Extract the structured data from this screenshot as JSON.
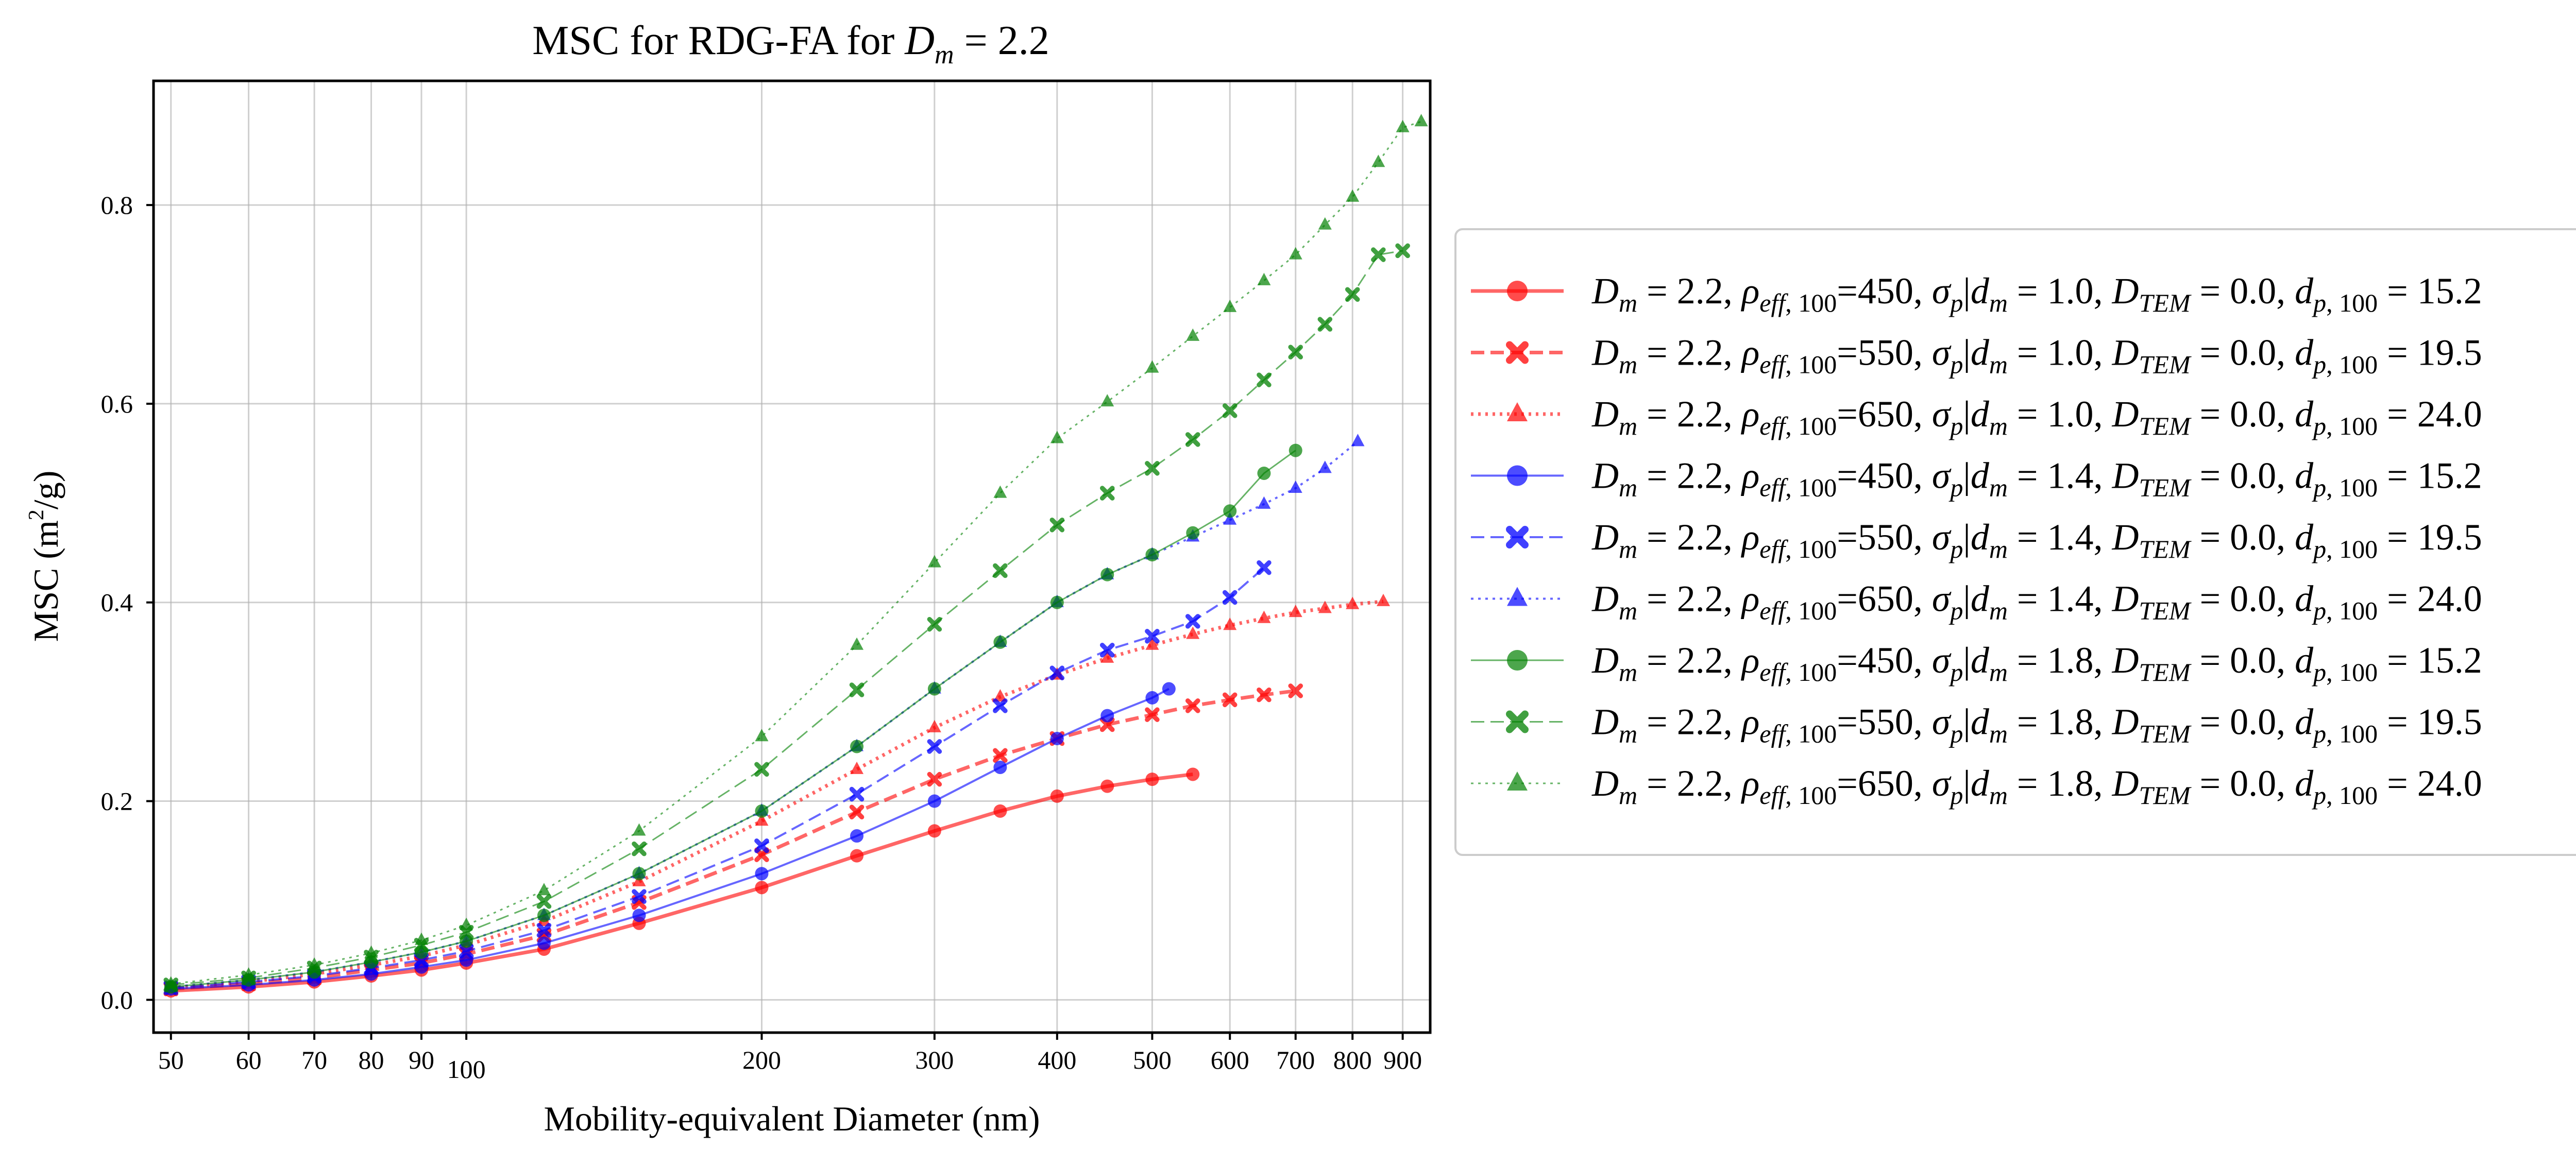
{
  "chart_data": {
    "type": "line",
    "title": "MSC for RDG-FA for D_m = 2.2",
    "title_parts": {
      "lead": "MSC for RDG-FA for ",
      "var": "D",
      "sub": "m",
      "tail": " = 2.2"
    },
    "xlabel": "Mobility-equivalent Diameter (nm)",
    "ylabel": "MSC (m²/g)",
    "ylabel_parts": {
      "lead": "MSC (m",
      "sup": "2",
      "tail": "/g)"
    },
    "x_scale": "log",
    "xlim": [
      48,
      960
    ],
    "ylim": [
      -0.033,
      0.925
    ],
    "grid": true,
    "legend_position": "outside-right",
    "x_ticks": [
      50,
      60,
      70,
      80,
      90,
      100,
      200,
      300,
      400,
      500,
      600,
      700,
      800,
      900
    ],
    "x_tick_labels": [
      "50",
      "60",
      "70",
      "80",
      "90",
      "100",
      "200",
      "300",
      "400",
      "500",
      "600",
      "700",
      "800",
      "900"
    ],
    "y_ticks": [
      0.0,
      0.2,
      0.4,
      0.6,
      0.8
    ],
    "y_tick_labels": [
      "0.0",
      "0.2",
      "0.4",
      "0.6",
      "0.8"
    ],
    "series": [
      {
        "name": "D_m = 2.2, ρ_eff,100=450, σ_p|d_m = 1.0, D_TEM = 0.0, d_p,100 = 15.2",
        "label": {
          "rho": "450",
          "sigma": "1.0",
          "dp": "15.2"
        },
        "color": "#ff0000",
        "marker": "circle",
        "linestyle": "solid",
        "linewidth": 7,
        "x": [
          50,
          60,
          70,
          80,
          90,
          100,
          120,
          150,
          200,
          250,
          300,
          350,
          400,
          450,
          500,
          550
        ],
        "y": [
          0.009,
          0.013,
          0.018,
          0.024,
          0.03,
          0.037,
          0.051,
          0.077,
          0.113,
          0.145,
          0.17,
          0.19,
          0.205,
          0.215,
          0.222,
          0.227
        ]
      },
      {
        "name": "D_m = 2.2, ρ_eff,100=550, σ_p|d_m = 1.0, D_TEM = 0.0, d_p,100 = 19.5",
        "label": {
          "rho": "550",
          "sigma": "1.0",
          "dp": "19.5"
        },
        "color": "#ff0000",
        "marker": "x",
        "linestyle": "dashed",
        "linewidth": 7,
        "x": [
          50,
          60,
          70,
          80,
          90,
          100,
          120,
          150,
          200,
          250,
          300,
          350,
          400,
          450,
          500,
          550,
          600,
          650,
          700
        ],
        "y": [
          0.011,
          0.016,
          0.022,
          0.03,
          0.037,
          0.046,
          0.065,
          0.098,
          0.146,
          0.189,
          0.222,
          0.246,
          0.263,
          0.277,
          0.287,
          0.296,
          0.302,
          0.307,
          0.311
        ]
      },
      {
        "name": "D_m = 2.2, ρ_eff,100=650, σ_p|d_m = 1.0, D_TEM = 0.0, d_p,100 = 24.0",
        "label": {
          "rho": "650",
          "sigma": "1.0",
          "dp": "24.0"
        },
        "color": "#ff0000",
        "marker": "triangle",
        "linestyle": "dotted",
        "linewidth": 7,
        "x": [
          50,
          60,
          70,
          80,
          90,
          100,
          120,
          150,
          200,
          250,
          300,
          350,
          400,
          450,
          500,
          550,
          600,
          650,
          700,
          750,
          800,
          860
        ],
        "y": [
          0.012,
          0.018,
          0.026,
          0.035,
          0.044,
          0.055,
          0.079,
          0.119,
          0.18,
          0.232,
          0.274,
          0.305,
          0.327,
          0.344,
          0.357,
          0.368,
          0.377,
          0.384,
          0.39,
          0.394,
          0.398,
          0.401
        ]
      },
      {
        "name": "D_m = 2.2, ρ_eff,100=450, σ_p|d_m = 1.4, D_TEM = 0.0, d_p,100 = 15.2",
        "label": {
          "rho": "450",
          "sigma": "1.4",
          "dp": "15.2"
        },
        "color": "#0000ff",
        "marker": "circle",
        "linestyle": "solid",
        "linewidth": 4,
        "x": [
          50,
          60,
          70,
          80,
          90,
          100,
          120,
          150,
          200,
          250,
          300,
          350,
          400,
          450,
          500,
          520
        ],
        "y": [
          0.011,
          0.015,
          0.02,
          0.026,
          0.033,
          0.04,
          0.057,
          0.085,
          0.127,
          0.165,
          0.2,
          0.234,
          0.263,
          0.286,
          0.304,
          0.313
        ]
      },
      {
        "name": "D_m = 2.2, ρ_eff,100=550, σ_p|d_m = 1.4, D_TEM = 0.0, d_p,100 = 19.5",
        "label": {
          "rho": "550",
          "sigma": "1.4",
          "dp": "19.5"
        },
        "color": "#0000ff",
        "marker": "x",
        "linestyle": "dashed",
        "linewidth": 4,
        "x": [
          50,
          60,
          70,
          80,
          90,
          100,
          120,
          150,
          200,
          250,
          300,
          350,
          400,
          450,
          500,
          550,
          600,
          650
        ],
        "y": [
          0.012,
          0.018,
          0.024,
          0.032,
          0.04,
          0.049,
          0.07,
          0.104,
          0.155,
          0.207,
          0.255,
          0.296,
          0.329,
          0.352,
          0.366,
          0.381,
          0.405,
          0.435
        ]
      },
      {
        "name": "D_m = 2.2, ρ_eff,100=650, σ_p|d_m = 1.4, D_TEM = 0.0, d_p,100 = 24.0",
        "label": {
          "rho": "650",
          "sigma": "1.4",
          "dp": "24.0"
        },
        "color": "#0000ff",
        "marker": "triangle",
        "linestyle": "dotted",
        "linewidth": 4,
        "x": [
          50,
          60,
          70,
          80,
          90,
          100,
          120,
          150,
          200,
          250,
          300,
          350,
          400,
          450,
          500,
          550,
          600,
          650,
          700,
          750,
          810
        ],
        "y": [
          0.013,
          0.02,
          0.028,
          0.038,
          0.048,
          0.059,
          0.085,
          0.127,
          0.19,
          0.255,
          0.313,
          0.36,
          0.4,
          0.428,
          0.448,
          0.466,
          0.483,
          0.499,
          0.515,
          0.535,
          0.562
        ]
      },
      {
        "name": "D_m = 2.2, ρ_eff,100=450, σ_p|d_m = 1.8, D_TEM = 0.0, d_p,100 = 15.2",
        "label": {
          "rho": "450",
          "sigma": "1.8",
          "dp": "15.2"
        },
        "color": "#008000",
        "marker": "circle",
        "linestyle": "solid",
        "linewidth": 3,
        "x": [
          50,
          60,
          70,
          80,
          90,
          100,
          120,
          150,
          200,
          250,
          300,
          350,
          400,
          450,
          500,
          550,
          600,
          650,
          700
        ],
        "y": [
          0.013,
          0.02,
          0.028,
          0.038,
          0.048,
          0.059,
          0.085,
          0.127,
          0.19,
          0.255,
          0.313,
          0.36,
          0.4,
          0.428,
          0.448,
          0.47,
          0.492,
          0.53,
          0.553
        ]
      },
      {
        "name": "D_m = 2.2, ρ_eff,100=550, σ_p|d_m = 1.8, D_TEM = 0.0, d_p,100 = 19.5",
        "label": {
          "rho": "550",
          "sigma": "1.8",
          "dp": "19.5"
        },
        "color": "#008000",
        "marker": "x",
        "linestyle": "dashed",
        "linewidth": 3,
        "x": [
          50,
          60,
          70,
          80,
          90,
          100,
          120,
          150,
          200,
          250,
          300,
          350,
          400,
          450,
          500,
          550,
          600,
          650,
          700,
          750,
          800,
          850,
          900
        ],
        "y": [
          0.015,
          0.022,
          0.032,
          0.043,
          0.055,
          0.068,
          0.099,
          0.152,
          0.232,
          0.312,
          0.378,
          0.432,
          0.478,
          0.51,
          0.535,
          0.564,
          0.593,
          0.624,
          0.652,
          0.68,
          0.71,
          0.75,
          0.754
        ]
      },
      {
        "name": "D_m = 2.2, ρ_eff,100=650, σ_p|d_m = 1.8, D_TEM = 0.0, d_p,100 = 24.0",
        "label": {
          "rho": "650",
          "sigma": "1.8",
          "dp": "24.0"
        },
        "color": "#008000",
        "marker": "triangle",
        "linestyle": "dotted",
        "linewidth": 3,
        "x": [
          50,
          60,
          70,
          80,
          90,
          100,
          120,
          150,
          200,
          250,
          300,
          350,
          400,
          450,
          500,
          550,
          600,
          650,
          700,
          750,
          800,
          850,
          900,
          940
        ],
        "y": [
          0.016,
          0.025,
          0.035,
          0.047,
          0.06,
          0.075,
          0.11,
          0.17,
          0.265,
          0.357,
          0.44,
          0.51,
          0.565,
          0.602,
          0.636,
          0.668,
          0.697,
          0.724,
          0.75,
          0.78,
          0.808,
          0.843,
          0.878,
          0.884
        ]
      }
    ]
  }
}
